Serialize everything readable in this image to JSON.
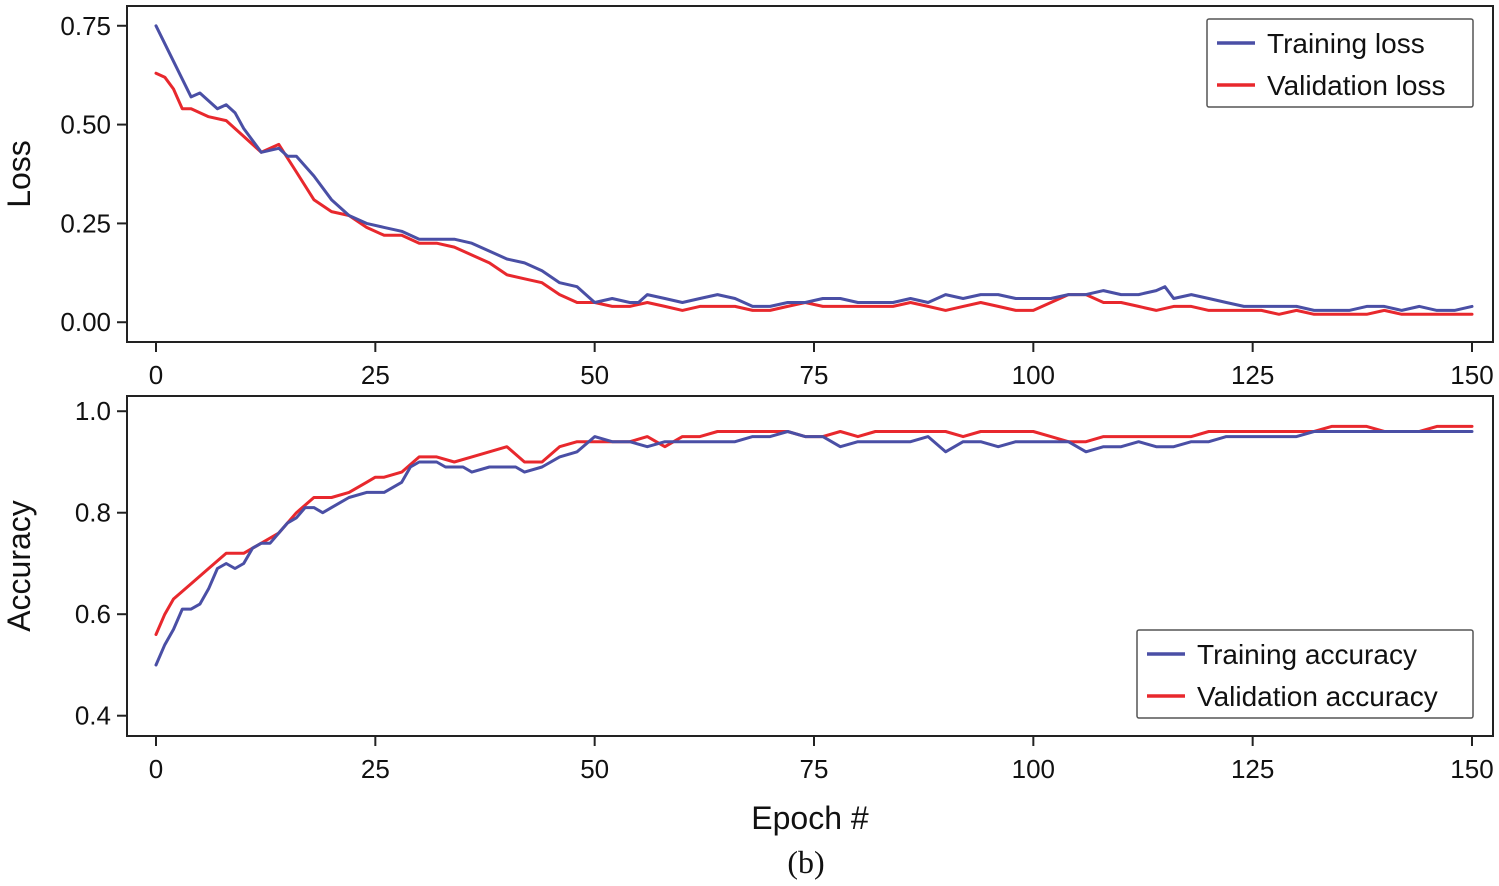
{
  "figure": {
    "xlabel": "Epoch #",
    "caption": "(b)"
  },
  "chart_data": [
    {
      "type": "line",
      "title": "",
      "xlabel": "",
      "ylabel": "Loss",
      "xlim": [
        0,
        150
      ],
      "ylim": [
        -0.05,
        0.8
      ],
      "xticks": [
        "0",
        "25",
        "50",
        "75",
        "100",
        "125",
        "150"
      ],
      "yticks": [
        "0.00",
        "0.25",
        "0.50",
        "0.75"
      ],
      "legend_position": "top-right",
      "grid": false,
      "colors": {
        "training": "#4a4fa5",
        "validation": "#e8282d"
      },
      "series": [
        {
          "name": "Training loss",
          "x": [
            0,
            2,
            4,
            5,
            7,
            8,
            9,
            10,
            12,
            14,
            15,
            16,
            18,
            20,
            22,
            24,
            26,
            28,
            30,
            32,
            34,
            36,
            38,
            40,
            42,
            44,
            46,
            48,
            50,
            52,
            54,
            55,
            56,
            58,
            60,
            62,
            64,
            66,
            68,
            70,
            72,
            74,
            76,
            78,
            80,
            82,
            84,
            86,
            88,
            90,
            92,
            94,
            96,
            98,
            100,
            102,
            104,
            106,
            108,
            110,
            112,
            114,
            115,
            116,
            118,
            120,
            122,
            124,
            126,
            128,
            130,
            132,
            134,
            136,
            138,
            140,
            142,
            144,
            146,
            148,
            150
          ],
          "y": [
            0.75,
            0.66,
            0.57,
            0.58,
            0.54,
            0.55,
            0.53,
            0.49,
            0.43,
            0.44,
            0.42,
            0.42,
            0.37,
            0.31,
            0.27,
            0.25,
            0.24,
            0.23,
            0.21,
            0.21,
            0.21,
            0.2,
            0.18,
            0.16,
            0.15,
            0.13,
            0.1,
            0.09,
            0.05,
            0.06,
            0.05,
            0.05,
            0.07,
            0.06,
            0.05,
            0.06,
            0.07,
            0.06,
            0.04,
            0.04,
            0.05,
            0.05,
            0.06,
            0.06,
            0.05,
            0.05,
            0.05,
            0.06,
            0.05,
            0.07,
            0.06,
            0.07,
            0.07,
            0.06,
            0.06,
            0.06,
            0.07,
            0.07,
            0.08,
            0.07,
            0.07,
            0.08,
            0.09,
            0.06,
            0.07,
            0.06,
            0.05,
            0.04,
            0.04,
            0.04,
            0.04,
            0.03,
            0.03,
            0.03,
            0.04,
            0.04,
            0.03,
            0.04,
            0.03,
            0.03,
            0.04
          ]
        },
        {
          "name": "Validation loss",
          "x": [
            0,
            1,
            2,
            3,
            4,
            6,
            8,
            10,
            12,
            14,
            16,
            18,
            20,
            22,
            24,
            26,
            28,
            30,
            32,
            34,
            36,
            38,
            40,
            42,
            44,
            46,
            48,
            50,
            52,
            54,
            56,
            58,
            60,
            62,
            64,
            66,
            68,
            70,
            72,
            74,
            76,
            78,
            80,
            82,
            84,
            86,
            88,
            90,
            92,
            94,
            96,
            98,
            100,
            102,
            104,
            105,
            106,
            108,
            110,
            112,
            114,
            116,
            118,
            120,
            122,
            124,
            126,
            128,
            130,
            132,
            134,
            136,
            138,
            140,
            142,
            144,
            146,
            148,
            150
          ],
          "y": [
            0.63,
            0.62,
            0.59,
            0.54,
            0.54,
            0.52,
            0.51,
            0.47,
            0.43,
            0.45,
            0.38,
            0.31,
            0.28,
            0.27,
            0.24,
            0.22,
            0.22,
            0.2,
            0.2,
            0.19,
            0.17,
            0.15,
            0.12,
            0.11,
            0.1,
            0.07,
            0.05,
            0.05,
            0.04,
            0.04,
            0.05,
            0.04,
            0.03,
            0.04,
            0.04,
            0.04,
            0.03,
            0.03,
            0.04,
            0.05,
            0.04,
            0.04,
            0.04,
            0.04,
            0.04,
            0.05,
            0.04,
            0.03,
            0.04,
            0.05,
            0.04,
            0.03,
            0.03,
            0.05,
            0.07,
            0.07,
            0.07,
            0.05,
            0.05,
            0.04,
            0.03,
            0.04,
            0.04,
            0.03,
            0.03,
            0.03,
            0.03,
            0.02,
            0.03,
            0.02,
            0.02,
            0.02,
            0.02,
            0.03,
            0.02,
            0.02,
            0.02,
            0.02,
            0.02
          ]
        }
      ]
    },
    {
      "type": "line",
      "title": "",
      "xlabel": "",
      "ylabel": "Accuracy",
      "xlim": [
        0,
        150
      ],
      "ylim": [
        0.36,
        1.03
      ],
      "xticks": [
        "0",
        "25",
        "50",
        "75",
        "100",
        "125",
        "150"
      ],
      "yticks": [
        "0.4",
        "0.6",
        "0.8",
        "1.0"
      ],
      "legend_position": "bottom-right",
      "grid": false,
      "colors": {
        "training": "#4a4fa5",
        "validation": "#e8282d"
      },
      "series": [
        {
          "name": "Training accuracy",
          "x": [
            0,
            1,
            2,
            3,
            4,
            5,
            6,
            7,
            8,
            9,
            10,
            11,
            12,
            13,
            14,
            15,
            16,
            17,
            18,
            19,
            20,
            21,
            22,
            24,
            26,
            28,
            29,
            30,
            31,
            32,
            33,
            34,
            35,
            36,
            38,
            40,
            41,
            42,
            44,
            46,
            48,
            50,
            52,
            54,
            56,
            58,
            60,
            62,
            64,
            66,
            68,
            70,
            72,
            74,
            76,
            78,
            80,
            82,
            84,
            86,
            88,
            90,
            92,
            94,
            96,
            98,
            100,
            102,
            104,
            106,
            108,
            110,
            112,
            114,
            116,
            118,
            120,
            122,
            124,
            126,
            128,
            130,
            132,
            134,
            136,
            138,
            140,
            142,
            144,
            146,
            148,
            150
          ],
          "y": [
            0.5,
            0.54,
            0.57,
            0.61,
            0.61,
            0.62,
            0.65,
            0.69,
            0.7,
            0.69,
            0.7,
            0.73,
            0.74,
            0.74,
            0.76,
            0.78,
            0.79,
            0.81,
            0.81,
            0.8,
            0.81,
            0.82,
            0.83,
            0.84,
            0.84,
            0.86,
            0.89,
            0.9,
            0.9,
            0.9,
            0.89,
            0.89,
            0.89,
            0.88,
            0.89,
            0.89,
            0.89,
            0.88,
            0.89,
            0.91,
            0.92,
            0.95,
            0.94,
            0.94,
            0.93,
            0.94,
            0.94,
            0.94,
            0.94,
            0.94,
            0.95,
            0.95,
            0.96,
            0.95,
            0.95,
            0.93,
            0.94,
            0.94,
            0.94,
            0.94,
            0.95,
            0.92,
            0.94,
            0.94,
            0.93,
            0.94,
            0.94,
            0.94,
            0.94,
            0.92,
            0.93,
            0.93,
            0.94,
            0.93,
            0.93,
            0.94,
            0.94,
            0.95,
            0.95,
            0.95,
            0.95,
            0.95,
            0.96,
            0.96,
            0.96,
            0.96,
            0.96,
            0.96,
            0.96,
            0.96,
            0.96,
            0.96
          ]
        },
        {
          "name": "Validation accuracy",
          "x": [
            0,
            1,
            2,
            4,
            6,
            8,
            9,
            10,
            11,
            12,
            14,
            16,
            18,
            20,
            22,
            24,
            25,
            26,
            28,
            30,
            32,
            34,
            36,
            38,
            40,
            42,
            44,
            46,
            48,
            50,
            52,
            54,
            56,
            58,
            60,
            62,
            64,
            66,
            68,
            70,
            72,
            74,
            76,
            78,
            80,
            82,
            84,
            86,
            88,
            90,
            92,
            94,
            96,
            98,
            100,
            102,
            104,
            106,
            108,
            110,
            112,
            114,
            116,
            118,
            120,
            122,
            124,
            126,
            128,
            130,
            132,
            134,
            136,
            138,
            140,
            142,
            144,
            146,
            148,
            150
          ],
          "y": [
            0.56,
            0.6,
            0.63,
            0.66,
            0.69,
            0.72,
            0.72,
            0.72,
            0.73,
            0.74,
            0.76,
            0.8,
            0.83,
            0.83,
            0.84,
            0.86,
            0.87,
            0.87,
            0.88,
            0.91,
            0.91,
            0.9,
            0.91,
            0.92,
            0.93,
            0.9,
            0.9,
            0.93,
            0.94,
            0.94,
            0.94,
            0.94,
            0.95,
            0.93,
            0.95,
            0.95,
            0.96,
            0.96,
            0.96,
            0.96,
            0.96,
            0.95,
            0.95,
            0.96,
            0.95,
            0.96,
            0.96,
            0.96,
            0.96,
            0.96,
            0.95,
            0.96,
            0.96,
            0.96,
            0.96,
            0.95,
            0.94,
            0.94,
            0.95,
            0.95,
            0.95,
            0.95,
            0.95,
            0.95,
            0.96,
            0.96,
            0.96,
            0.96,
            0.96,
            0.96,
            0.96,
            0.97,
            0.97,
            0.97,
            0.96,
            0.96,
            0.96,
            0.97,
            0.97,
            0.97
          ]
        }
      ]
    }
  ]
}
